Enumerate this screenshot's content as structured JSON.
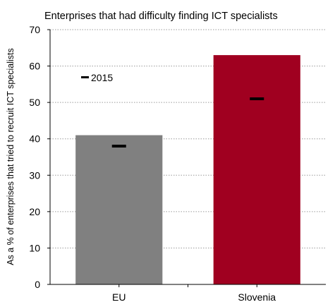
{
  "chart_data": {
    "type": "bar",
    "title": "Enterprises that had difficulty finding ICT specialists",
    "ylabel": "As a % of enterprises that tried to recruit ICT specialists",
    "xlabel": "",
    "categories": [
      "EU",
      "Slovenia"
    ],
    "series": [
      {
        "values": [
          41,
          63
        ]
      },
      {
        "name": "2015",
        "marker": "dash",
        "values": [
          38,
          51
        ]
      }
    ],
    "ylim": [
      0,
      70
    ],
    "yticks": [
      "0",
      "10",
      "20",
      "30",
      "40",
      "50",
      "60",
      "70"
    ],
    "grid": "horizontal dotted",
    "legend": "top-left",
    "colors": {
      "EU": "#808080",
      "Slovenia": "#a00020",
      "marker": "#000000"
    }
  }
}
